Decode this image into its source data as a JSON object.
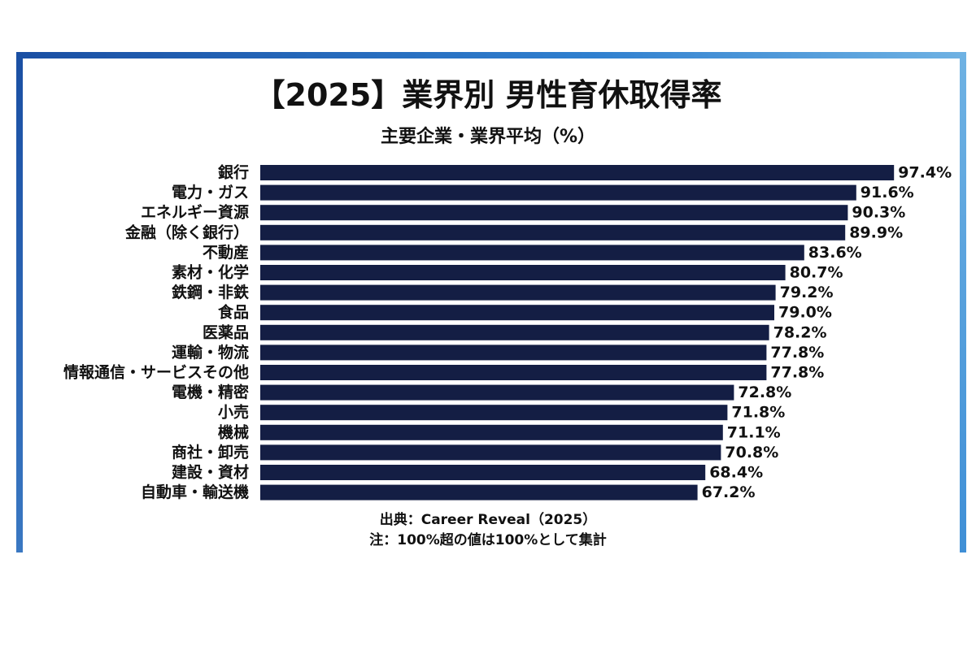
{
  "chart_data": {
    "type": "bar",
    "orientation": "horizontal",
    "title": "【2025】業界別 男性育休取得率",
    "subtitle": "主要企業・業界平均（%）",
    "categories": [
      "銀行",
      "電力・ガス",
      "エネルギー資源",
      "金融（除く銀行）",
      "不動産",
      "素材・化学",
      "鉄鋼・非鉄",
      "食品",
      "医薬品",
      "運輸・物流",
      "情報通信・サービスその他",
      "電機・精密",
      "小売",
      "機械",
      "商社・卸売",
      "建設・資材",
      "自動車・輸送機"
    ],
    "values": [
      97.4,
      91.6,
      90.3,
      89.9,
      83.6,
      80.7,
      79.2,
      79.0,
      78.2,
      77.8,
      77.8,
      72.8,
      71.8,
      71.1,
      70.8,
      68.4,
      67.2
    ],
    "value_labels": [
      "97.4%",
      "91.6%",
      "90.3%",
      "89.9%",
      "83.6%",
      "80.7%",
      "79.2%",
      "79.0%",
      "78.2%",
      "77.8%",
      "77.8%",
      "72.8%",
      "71.8%",
      "71.1%",
      "70.8%",
      "68.4%",
      "67.2%"
    ],
    "xlim": [
      0,
      100
    ],
    "bar_color": "#141e44",
    "legend": "none",
    "grid": false
  },
  "footer": {
    "source": "出典：Career Reveal（2025）",
    "note": "注：100%超の値は100%として集計"
  },
  "colors": {
    "frame": "#1a4fa3",
    "frame_light": "#6fb2e3",
    "text": "#111111"
  }
}
